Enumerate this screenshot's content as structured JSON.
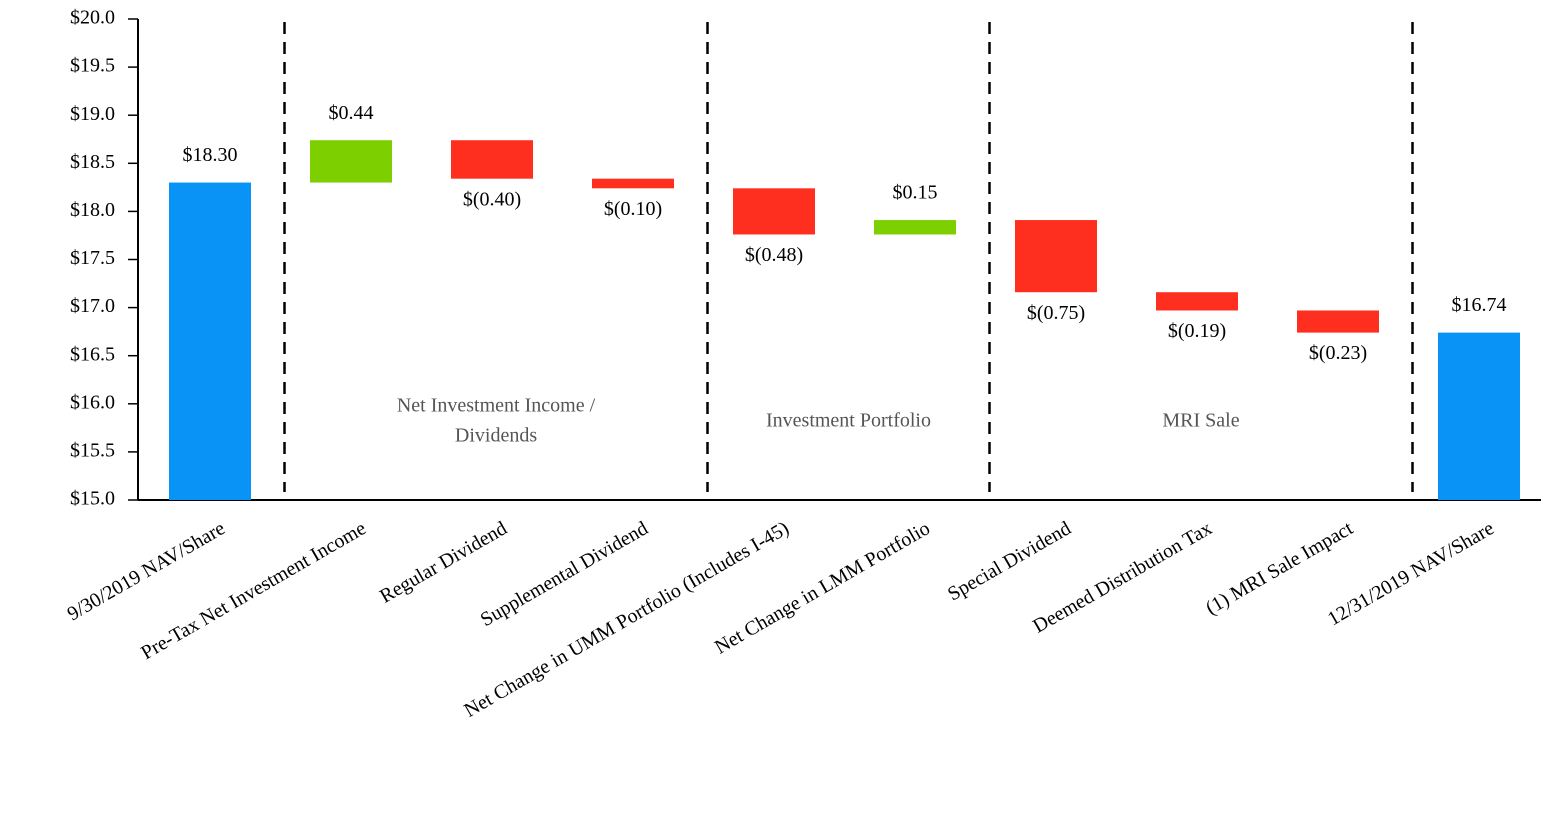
{
  "chart_data": {
    "type": "waterfall",
    "categories": [
      "9/30/2019 NAV/Share",
      "Pre-Tax Net Investment Income",
      "Regular Dividend",
      "Supplemental Dividend",
      "Net Change in UMM Portfolio (Includes I-45)",
      "Net Change in LMM Portfolio",
      "Special Dividend",
      "Deemed Distribution Tax",
      "(1)  MRI Sale Impact",
      "12/31/2019 NAV/Share"
    ],
    "measure": [
      "absolute",
      "relative",
      "relative",
      "relative",
      "relative",
      "relative",
      "relative",
      "relative",
      "relative",
      "absolute"
    ],
    "values": [
      18.3,
      0.44,
      -0.4,
      -0.1,
      -0.48,
      0.15,
      -0.75,
      -0.19,
      -0.23,
      16.74
    ],
    "value_labels": [
      "$18.30",
      "$0.44",
      "$(0.40)",
      "$(0.10)",
      "$(0.48)",
      "$0.15",
      "$(0.75)",
      "$(0.19)",
      "$(0.23)",
      "$16.74"
    ],
    "colors": {
      "total": "#0a93f7",
      "increase": "#7ecf00",
      "decrease": "#ff2f1f"
    },
    "groups": [
      {
        "label": [
          "Net Investment Income /",
          "Dividends"
        ],
        "start": 1,
        "end": 3
      },
      {
        "label": [
          "Investment Portfolio"
        ],
        "start": 4,
        "end": 5
      },
      {
        "label": [
          "MRI Sale"
        ],
        "start": 6,
        "end": 8
      }
    ],
    "ylim": [
      15.0,
      20.0
    ],
    "yticks": [
      {
        "value": 15.0,
        "label": "$15.0"
      },
      {
        "value": 15.5,
        "label": "$15.5"
      },
      {
        "value": 16.0,
        "label": "$16.0"
      },
      {
        "value": 16.5,
        "label": "$16.5"
      },
      {
        "value": 17.0,
        "label": "$17.0"
      },
      {
        "value": 17.5,
        "label": "$17.5"
      },
      {
        "value": 18.0,
        "label": "$18.0"
      },
      {
        "value": 18.5,
        "label": "$18.5"
      },
      {
        "value": 19.0,
        "label": "$19.0"
      },
      {
        "value": 19.5,
        "label": "$19.5"
      },
      {
        "value": 20.0,
        "label": "$20.0"
      }
    ],
    "grid": false
  }
}
